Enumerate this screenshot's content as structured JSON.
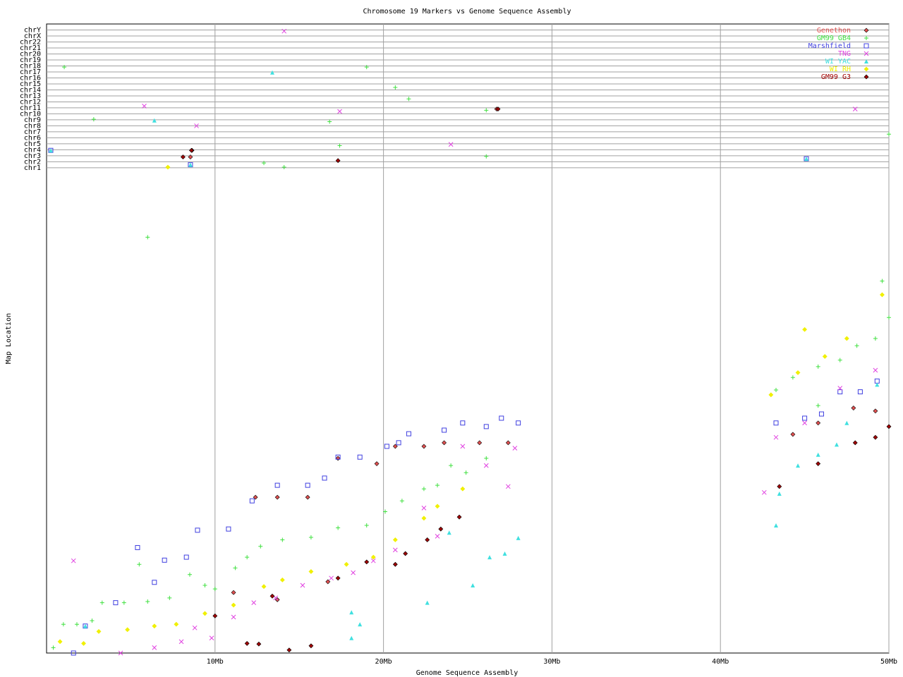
{
  "chart_data": {
    "type": "scatter",
    "title": "Chromosome 19 Markers vs Genome Sequence Assembly",
    "xlabel": "Genome Sequence Assembly",
    "ylabel": "Map Location",
    "xlim": [
      0,
      50
    ],
    "xticks": [
      {
        "value": 10,
        "label": "10Mb"
      },
      {
        "value": 20,
        "label": "20Mb"
      },
      {
        "value": 30,
        "label": "30Mb"
      },
      {
        "value": 40,
        "label": "40Mb"
      },
      {
        "value": 50,
        "label": "50Mb"
      }
    ],
    "ylim": [
      0,
      105
    ],
    "yticks": [
      {
        "value": 81,
        "label": "chr1"
      },
      {
        "value": 82,
        "label": "chr2"
      },
      {
        "value": 83,
        "label": "chr3"
      },
      {
        "value": 84,
        "label": "chr4"
      },
      {
        "value": 85,
        "label": "chr5"
      },
      {
        "value": 86,
        "label": "chr6"
      },
      {
        "value": 87,
        "label": "chr7"
      },
      {
        "value": 88,
        "label": "chr8"
      },
      {
        "value": 89,
        "label": "chr9"
      },
      {
        "value": 90,
        "label": "chr10"
      },
      {
        "value": 91,
        "label": "chr11"
      },
      {
        "value": 92,
        "label": "chr12"
      },
      {
        "value": 93,
        "label": "chr13"
      },
      {
        "value": 94,
        "label": "chr14"
      },
      {
        "value": 95,
        "label": "chr15"
      },
      {
        "value": 96,
        "label": "chr16"
      },
      {
        "value": 97,
        "label": "chr17"
      },
      {
        "value": 98,
        "label": "chr18"
      },
      {
        "value": 99,
        "label": "chr19"
      },
      {
        "value": 100,
        "label": "chr20"
      },
      {
        "value": 101,
        "label": "chr21"
      },
      {
        "value": 102,
        "label": "chr22"
      },
      {
        "value": 103,
        "label": "chrX"
      },
      {
        "value": 104,
        "label": "chrY"
      }
    ],
    "grid": true,
    "legend": "top-right",
    "series": [
      {
        "name": "Genethon",
        "color": "#e05050",
        "marker": "diamond",
        "x": [
          8.54,
          8.63,
          26.72,
          12.4,
          13.7,
          15.5,
          17.3,
          19.6,
          20.7,
          22.4,
          23.6,
          25.7,
          27.4,
          44.3,
          45.8,
          47.9,
          49.2,
          11.1,
          13.7,
          16.7
        ],
        "values": [
          82.8,
          83.9,
          90.8,
          26.0,
          26.0,
          26.0,
          32.5,
          31.6,
          34.5,
          34.5,
          35.1,
          35.1,
          35.1,
          36.5,
          38.4,
          40.9,
          40.4,
          10.1,
          8.9,
          11.9
        ]
      },
      {
        "name": "GM99 GB4",
        "color": "#40e040",
        "marker": "plus",
        "x": [
          1.05,
          19.0,
          2.8,
          16.8,
          17.4,
          12.9,
          14.1,
          20.7,
          21.5,
          26.1,
          26.1,
          6.0,
          50.0,
          0.4,
          1.0,
          1.8,
          2.7,
          3.3,
          4.6,
          6.0,
          7.3,
          8.5,
          9.4,
          10.0,
          11.2,
          11.9,
          12.7,
          14.0,
          15.7,
          17.3,
          19.0,
          20.1,
          21.1,
          22.4,
          23.2,
          24.0,
          24.9,
          26.1,
          43.3,
          44.3,
          45.8,
          47.1,
          48.1,
          49.2,
          49.6,
          50.0,
          45.8,
          5.5
        ],
        "values": [
          97.8,
          97.8,
          89.1,
          88.7,
          84.7,
          81.8,
          81.1,
          94.4,
          92.5,
          82.9,
          90.6,
          69.4,
          86.6,
          0.9,
          4.8,
          4.8,
          5.4,
          8.4,
          8.4,
          8.6,
          9.2,
          13.1,
          11.3,
          10.7,
          14.2,
          16.0,
          17.8,
          18.9,
          19.3,
          20.9,
          21.3,
          23.6,
          25.4,
          27.4,
          28.0,
          31.3,
          30.1,
          32.5,
          43.9,
          46.0,
          47.8,
          48.9,
          51.3,
          52.5,
          62.1,
          56.0,
          41.3,
          14.8
        ]
      },
      {
        "name": "Marshfield",
        "color": "#4040e0",
        "marker": "square",
        "x": [
          0.25,
          8.54,
          45.1,
          1.6,
          2.3,
          4.1,
          5.4,
          6.4,
          7.0,
          8.3,
          8.96,
          10.8,
          12.2,
          13.7,
          15.5,
          16.5,
          17.3,
          18.6,
          20.2,
          20.9,
          21.5,
          23.6,
          24.7,
          26.1,
          27.0,
          28.0,
          43.3,
          45.0,
          46.0,
          47.1,
          48.3,
          49.3
        ],
        "values": [
          83.9,
          81.5,
          82.5,
          0,
          4.5,
          8.4,
          17.6,
          11.8,
          15.5,
          16.0,
          20.5,
          20.7,
          25.4,
          28.0,
          28.0,
          29.2,
          32.7,
          32.7,
          34.5,
          35.1,
          36.6,
          37.2,
          38.4,
          37.8,
          39.2,
          38.4,
          38.4,
          39.2,
          39.9,
          43.6,
          43.6,
          45.4
        ]
      },
      {
        "name": "TNG",
        "color": "#e040e0",
        "marker": "x",
        "x": [
          14.1,
          5.8,
          17.4,
          8.9,
          24.0,
          48.0,
          1.6,
          4.4,
          6.4,
          8.0,
          8.8,
          9.8,
          11.1,
          12.3,
          13.6,
          15.2,
          16.9,
          18.2,
          19.4,
          20.7,
          22.4,
          23.2,
          24.7,
          26.1,
          27.4,
          27.8,
          42.6,
          43.3,
          45.0,
          47.1,
          49.2
        ],
        "values": [
          103.8,
          91.3,
          90.4,
          88.0,
          84.9,
          90.8,
          15.4,
          0,
          0.9,
          1.9,
          4.2,
          2.5,
          6.0,
          8.4,
          9.2,
          11.3,
          12.5,
          13.4,
          15.4,
          17.2,
          24.2,
          19.5,
          34.5,
          31.3,
          27.8,
          34.2,
          26.8,
          36.0,
          38.4,
          44.2,
          47.2
        ]
      },
      {
        "name": "WI YAC",
        "color": "#40e0e0",
        "marker": "triangle",
        "x": [
          0.25,
          13.4,
          6.4,
          8.54,
          45.1,
          2.3,
          18.1,
          18.6,
          18.1,
          22.6,
          23.9,
          25.3,
          26.3,
          27.2,
          28.0,
          43.3,
          43.5,
          44.6,
          45.8,
          46.9,
          47.5,
          49.3
        ],
        "values": [
          83.9,
          96.9,
          88.9,
          81.5,
          82.5,
          4.5,
          6.8,
          4.8,
          2.5,
          8.4,
          20.1,
          11.3,
          16.0,
          16.6,
          19.2,
          21.3,
          26.6,
          31.3,
          33.1,
          34.8,
          38.4,
          44.8
        ]
      },
      {
        "name": "WI RH",
        "color": "#f0f000",
        "marker": "diamond",
        "x": [
          7.2,
          0.8,
          2.2,
          3.1,
          4.8,
          6.4,
          7.7,
          9.4,
          11.1,
          12.9,
          14.0,
          15.7,
          17.8,
          19.4,
          20.7,
          22.4,
          23.2,
          24.7,
          43.0,
          44.6,
          46.2,
          47.5,
          45.0,
          49.6
        ],
        "values": [
          81.1,
          1.9,
          1.6,
          3.6,
          3.9,
          4.5,
          4.8,
          6.6,
          8.0,
          11.1,
          12.2,
          13.6,
          14.8,
          16.0,
          18.9,
          22.5,
          24.5,
          27.4,
          43.1,
          46.8,
          49.5,
          52.5,
          54.0,
          59.8
        ]
      },
      {
        "name": "GM99 G3",
        "color": "#a00000",
        "marker": "diamond",
        "x": [
          8.6,
          17.3,
          26.8,
          8.1,
          10.0,
          11.9,
          12.6,
          14.4,
          13.4,
          15.7,
          17.3,
          19.0,
          20.7,
          21.3,
          22.6,
          23.4,
          24.5,
          43.5,
          45.8,
          48.0,
          49.2,
          50.0
        ],
        "values": [
          83.9,
          82.2,
          90.8,
          82.8,
          6.2,
          1.6,
          1.5,
          0.5,
          9.5,
          1.2,
          12.5,
          15.2,
          14.8,
          16.6,
          18.9,
          20.7,
          22.7,
          27.8,
          31.6,
          35.1,
          36.0,
          37.8
        ]
      }
    ]
  }
}
